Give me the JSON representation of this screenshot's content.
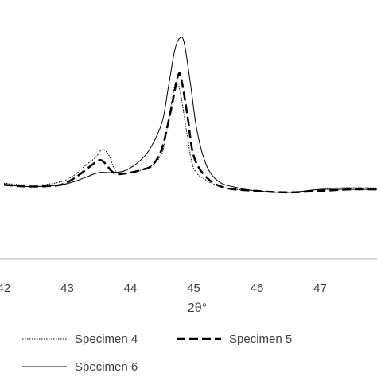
{
  "chart_data": {
    "type": "line",
    "xlabel": "2θ°",
    "ylabel": "",
    "title": "",
    "xlim": [
      42.0,
      47.9
    ],
    "xticks": [
      42,
      43,
      44,
      45,
      46,
      47
    ],
    "tick_labels": [
      "42",
      "43",
      "44",
      "45",
      "46",
      "47"
    ],
    "ylim": [
      0,
      100
    ],
    "grid": false,
    "legend_position": "bottom",
    "series": [
      {
        "name": "Specimen 4",
        "style": "dotted",
        "color": "#000000",
        "points": [
          [
            42.0,
            5
          ],
          [
            42.3,
            4
          ],
          [
            42.6,
            4
          ],
          [
            42.9,
            6
          ],
          [
            43.1,
            10
          ],
          [
            43.3,
            17
          ],
          [
            43.45,
            22
          ],
          [
            43.55,
            27
          ],
          [
            43.65,
            24
          ],
          [
            43.75,
            14
          ],
          [
            43.85,
            11
          ],
          [
            44.0,
            12
          ],
          [
            44.2,
            14
          ],
          [
            44.35,
            17
          ],
          [
            44.5,
            25
          ],
          [
            44.6,
            45
          ],
          [
            44.7,
            69
          ],
          [
            44.75,
            70
          ],
          [
            44.8,
            62
          ],
          [
            44.9,
            36
          ],
          [
            45.0,
            15
          ],
          [
            45.2,
            7
          ],
          [
            45.5,
            2
          ],
          [
            46.0,
            0
          ],
          [
            46.5,
            -1
          ],
          [
            47.0,
            1
          ],
          [
            47.3,
            2
          ],
          [
            47.9,
            2
          ]
        ]
      },
      {
        "name": "Specimen 5",
        "style": "dashed",
        "color": "#000000",
        "points": [
          [
            42.0,
            4
          ],
          [
            42.3,
            3
          ],
          [
            42.6,
            3
          ],
          [
            42.9,
            4
          ],
          [
            43.1,
            8
          ],
          [
            43.3,
            14
          ],
          [
            43.5,
            20
          ],
          [
            43.6,
            18
          ],
          [
            43.7,
            13
          ],
          [
            43.8,
            11
          ],
          [
            44.0,
            12
          ],
          [
            44.2,
            14
          ],
          [
            44.35,
            17
          ],
          [
            44.5,
            28
          ],
          [
            44.65,
            55
          ],
          [
            44.75,
            75
          ],
          [
            44.8,
            74
          ],
          [
            44.9,
            50
          ],
          [
            45.0,
            23
          ],
          [
            45.2,
            9
          ],
          [
            45.5,
            2
          ],
          [
            46.0,
            0
          ],
          [
            46.5,
            -1
          ],
          [
            47.0,
            0
          ],
          [
            47.5,
            1
          ],
          [
            47.9,
            1
          ]
        ]
      },
      {
        "name": "Specimen 6",
        "style": "solid",
        "color": "#000000",
        "points": [
          [
            42.0,
            4
          ],
          [
            42.3,
            3
          ],
          [
            42.6,
            3
          ],
          [
            42.9,
            4
          ],
          [
            43.1,
            6
          ],
          [
            43.3,
            9
          ],
          [
            43.5,
            12
          ],
          [
            43.7,
            12
          ],
          [
            43.9,
            13
          ],
          [
            44.1,
            18
          ],
          [
            44.3,
            27
          ],
          [
            44.5,
            45
          ],
          [
            44.6,
            68
          ],
          [
            44.7,
            92
          ],
          [
            44.78,
            100
          ],
          [
            44.85,
            97
          ],
          [
            44.95,
            70
          ],
          [
            45.05,
            40
          ],
          [
            45.2,
            17
          ],
          [
            45.4,
            6
          ],
          [
            45.7,
            2
          ],
          [
            46.0,
            0
          ],
          [
            46.5,
            -1
          ],
          [
            47.0,
            1
          ],
          [
            47.5,
            1
          ],
          [
            47.9,
            1
          ]
        ]
      }
    ]
  },
  "colors": {
    "axis": "#b7b7b7",
    "text": "#404040",
    "line": "#000000"
  }
}
